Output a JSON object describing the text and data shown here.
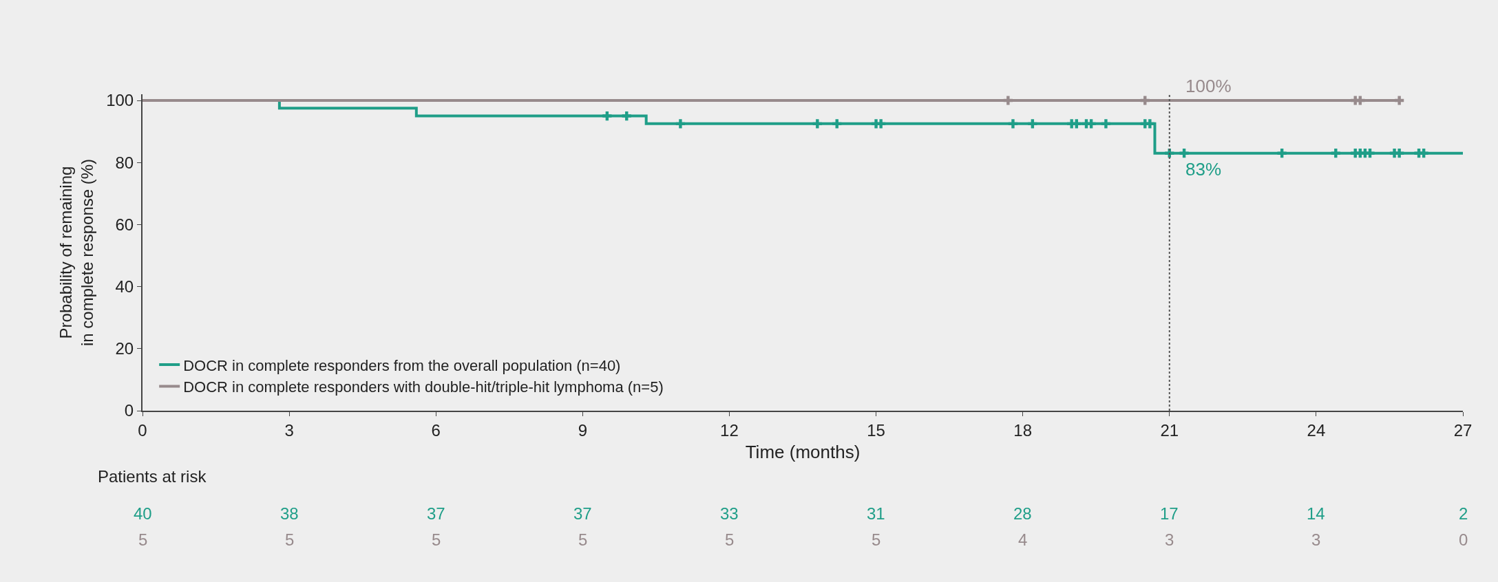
{
  "chart_data": {
    "type": "step",
    "xlabel": "Time (months)",
    "ylabel": "Probability of remaining\nin complete response (%)",
    "xlim": [
      0,
      27
    ],
    "xticks": [
      0,
      3,
      6,
      9,
      12,
      15,
      18,
      21,
      24,
      27
    ],
    "ylim": [
      0,
      102
    ],
    "yticks": [
      0,
      20,
      40,
      60,
      80,
      100
    ],
    "grid": false,
    "legend": "bottom left",
    "series": [
      {
        "name": "DOCR in complete responders from the overall population (n=40)",
        "color": "#1f9e88",
        "x": [
          0,
          2.8,
          5.6,
          10.3,
          20.7,
          27
        ],
        "values": [
          100,
          97.5,
          95,
          92.5,
          83,
          83
        ]
      },
      {
        "name": "DOCR in complete responders with double-hit/triple-hit lymphoma (n=5)",
        "color": "#978a8c",
        "x": [
          0,
          25.7
        ],
        "values": [
          100,
          100
        ]
      },
      {
        "type": "scatter",
        "marker": "cross",
        "color": "#1f9e88",
        "x": [
          9.5,
          9.9,
          11.0,
          13.8,
          14.2,
          15.0,
          15.1,
          17.8,
          18.2,
          19.0,
          19.1,
          19.3,
          19.4,
          19.7,
          20.5,
          20.6,
          21.0,
          21.3,
          23.3,
          24.4,
          24.8,
          24.9,
          25.0,
          25.1,
          25.6,
          25.7,
          26.1,
          26.2
        ],
        "values": [
          95,
          95,
          92.5,
          92.5,
          92.5,
          92.5,
          92.5,
          92.5,
          92.5,
          92.5,
          92.5,
          92.5,
          92.5,
          92.5,
          92.5,
          92.5,
          83,
          83,
          83,
          83,
          83,
          83,
          83,
          83,
          83,
          83,
          83,
          83
        ]
      },
      {
        "type": "scatter",
        "marker": "cross",
        "color": "#978a8c",
        "x": [
          17.7,
          20.5,
          24.8,
          24.9,
          25.7
        ],
        "values": [
          100,
          100,
          100,
          100,
          100
        ]
      }
    ],
    "ref_lines": [
      {
        "axis": "x",
        "value": 21,
        "color": "#555555",
        "line_style": "dotted"
      }
    ],
    "annotations": [
      {
        "text": "100%",
        "x": 21.3,
        "y": 100
      },
      {
        "text": "83%",
        "x": 21.3,
        "y": 83
      },
      "Patients at risk",
      "40",
      "38",
      "37",
      "37",
      "33",
      "31",
      "28",
      "17",
      "14",
      "2",
      "5",
      "5",
      "5",
      "5",
      "5",
      "5",
      "4",
      "3",
      "3",
      "0"
    ]
  }
}
